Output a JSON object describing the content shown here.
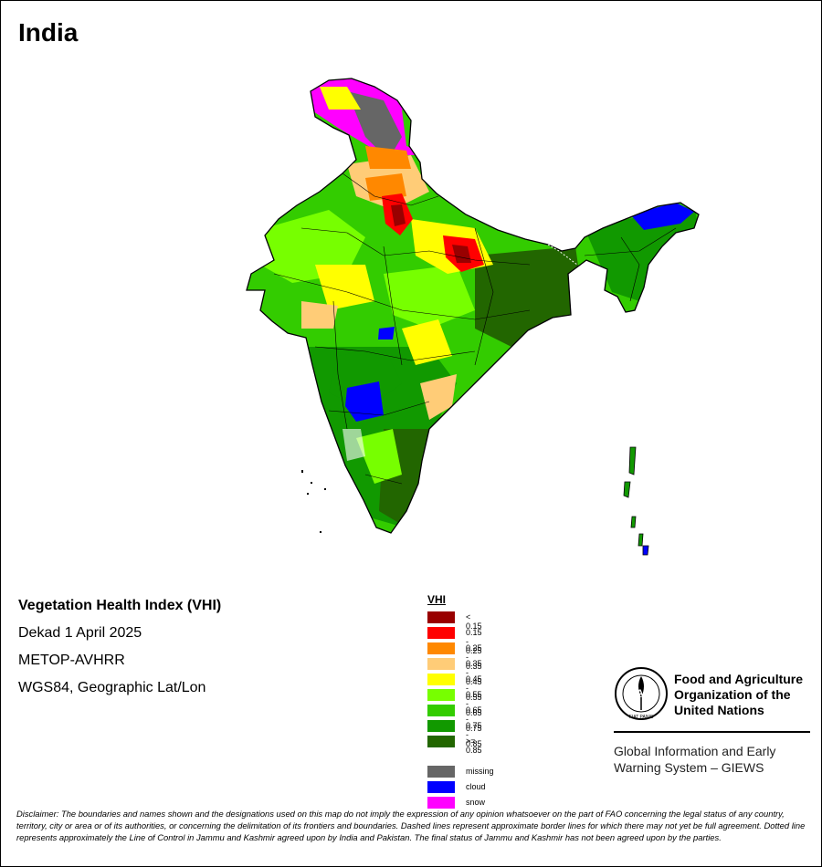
{
  "map": {
    "title": "India",
    "info": {
      "index_name": "Vegetation Health Index (VHI)",
      "period": "Dekad 1 April 2025",
      "sensor": "METOP-AVHRR",
      "projection": "WGS84, Geographic Lat/Lon"
    },
    "legend": {
      "title": "VHI",
      "classes": [
        {
          "label": "< 0.15",
          "color": "#990000"
        },
        {
          "label": "0.15 - 0.25",
          "color": "#ff0000"
        },
        {
          "label": "0.25 - 0.35",
          "color": "#ff8800"
        },
        {
          "label": "0.35 - 0.45",
          "color": "#ffcc77"
        },
        {
          "label": "0.45 - 0.55",
          "color": "#ffff00"
        },
        {
          "label": "0.55 - 0.65",
          "color": "#77ff00"
        },
        {
          "label": "0.65 - 0.75",
          "color": "#33cc00"
        },
        {
          "label": "0.75 - 0.85",
          "color": "#119900"
        },
        {
          "label": ">= 0.85",
          "color": "#226600"
        }
      ],
      "other": [
        {
          "label": "missing",
          "color": "#666666"
        },
        {
          "label": "cloud",
          "color": "#0000ff"
        },
        {
          "label": "snow",
          "color": "#ff00ff"
        }
      ]
    },
    "organization": {
      "name_line1": "Food and Agriculture",
      "name_line2": "Organization of the",
      "name_line3": "United Nations",
      "logo_text": "FAO",
      "logo_motto": "FIAT PANIS",
      "system_line1": "Global Information and Early",
      "system_line2": "Warning System – GIEWS"
    },
    "disclaimer": "Disclaimer: The boundaries and names shown and the designations used on this map do not imply the expression of any opinion whatsoever on the part of FAO concerning the legal status of any country, territory, city or area or of its authorities, or concerning the delimitation of its frontiers and boundaries. Dashed lines represent approximate border lines for which there may not yet be full agreement. Dotted line represents approximately the Line of Control in Jammu and Kashmir agreed upon by India and Pakistan. The final status of Jammu and Kashmir has not been agreed upon by the parties."
  }
}
